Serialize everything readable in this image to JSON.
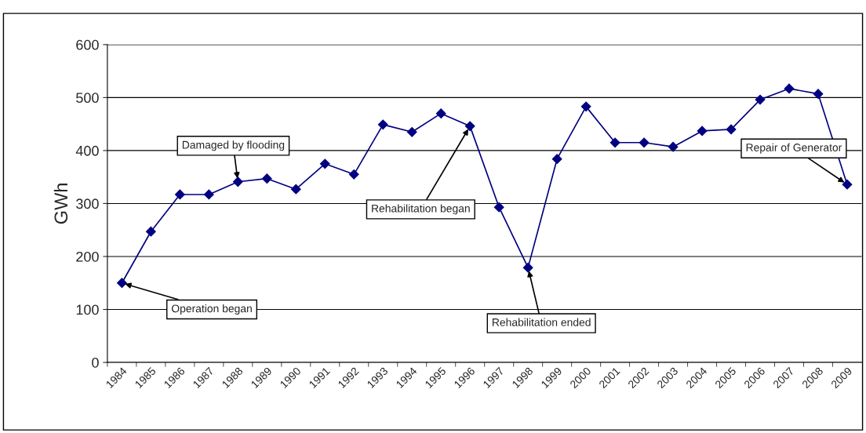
{
  "chart_data": {
    "type": "line",
    "ylabel": "GWh",
    "categories": [
      "1984",
      "1985",
      "1986",
      "1987",
      "1988",
      "1989",
      "1990",
      "1991",
      "1992",
      "1993",
      "1994",
      "1995",
      "1996",
      "1997",
      "1998",
      "1999",
      "2000",
      "2001",
      "2002",
      "2003",
      "2004",
      "2005",
      "2006",
      "2007",
      "2008",
      "2009"
    ],
    "series": [
      {
        "color": "#000080",
        "values": [
          150,
          247,
          317,
          317,
          341,
          347,
          327,
          375,
          355,
          449,
          435,
          470,
          446,
          293,
          179,
          384,
          483,
          415,
          415,
          407,
          437,
          440,
          496,
          517,
          507,
          336
        ]
      }
    ],
    "ylim": [
      0,
      600
    ],
    "yticks": [
      0,
      100,
      200,
      300,
      400,
      500,
      600
    ],
    "grid": "y",
    "marker": "diamond",
    "line_style": "solid",
    "annotations": [
      {
        "text": "Operation began",
        "x": "1984",
        "y": 150
      },
      {
        "text": "Damaged by flooding",
        "x": "1988",
        "y": 341
      },
      {
        "text": "Rehabilitation began",
        "x": "1996",
        "y": 446
      },
      {
        "text": "Rehabilitation ended",
        "x": "1998",
        "y": 179
      },
      {
        "text": "Repair of Generator",
        "x": "2009",
        "y": 336
      }
    ]
  }
}
